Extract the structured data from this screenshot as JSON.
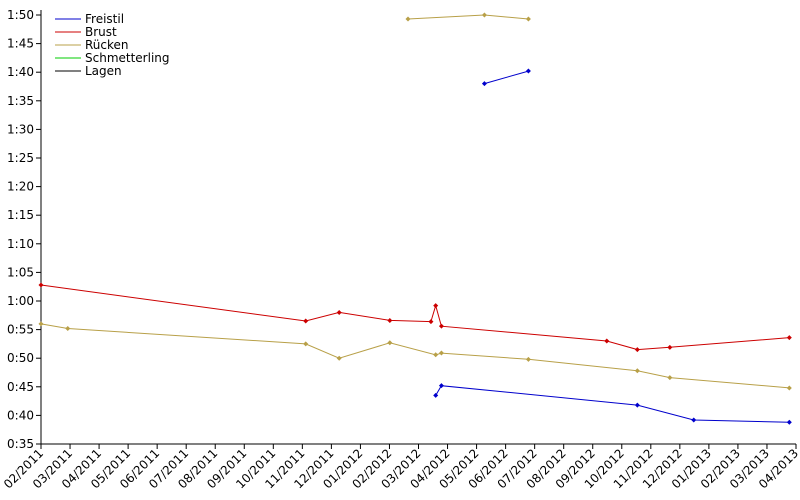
{
  "chart_data": {
    "type": "line",
    "title": "",
    "xlabel": "",
    "ylabel": "",
    "x_unit": "month",
    "xlim": [
      "2011-02-01",
      "2013-04-01"
    ],
    "ylim": [
      "0:35",
      "1:50"
    ],
    "x_tick_labels": [
      "02/2011",
      "03/2011",
      "04/2011",
      "05/2011",
      "06/2011",
      "07/2011",
      "08/2011",
      "09/2011",
      "10/2011",
      "11/2011",
      "12/2011",
      "01/2012",
      "02/2012",
      "03/2012",
      "04/2012",
      "05/2012",
      "06/2012",
      "07/2012",
      "08/2012",
      "09/2012",
      "10/2012",
      "11/2012",
      "12/2012",
      "01/2013",
      "02/2013",
      "03/2013",
      "04/2013"
    ],
    "y_tick_labels": [
      "0:35",
      "0:40",
      "0:45",
      "0:50",
      "0:55",
      "1:00",
      "1:05",
      "1:10",
      "1:15",
      "1:20",
      "1:25",
      "1:30",
      "1:35",
      "1:40",
      "1:45",
      "1:50"
    ],
    "grid": false,
    "legend_position": "top-left",
    "series": [
      {
        "name": "Freistil",
        "color": "#0000cc",
        "segments": [
          [
            [
              "2012-03-20",
              "0:43.5"
            ],
            [
              "2012-03-26",
              "0:45.2"
            ],
            [
              "2012-10-17",
              "0:41.8"
            ],
            [
              "2012-12-15",
              "0:39.2"
            ],
            [
              "2013-03-25",
              "0:38.8"
            ]
          ],
          [
            [
              "2012-05-10",
              "1:38"
            ],
            [
              "2012-06-25",
              "1:40.2"
            ]
          ]
        ]
      },
      {
        "name": "Brust",
        "color": "#cc0000",
        "segments": [
          [
            [
              "2011-02-01",
              "1:02.8"
            ],
            [
              "2011-11-05",
              "0:56.5"
            ],
            [
              "2011-12-10",
              "0:58"
            ],
            [
              "2012-02-01",
              "0:56.6"
            ],
            [
              "2012-03-15",
              "0:56.4"
            ],
            [
              "2012-03-20",
              "0:59.2"
            ],
            [
              "2012-03-26",
              "0:55.6"
            ],
            [
              "2012-09-15",
              "0:53"
            ],
            [
              "2012-10-17",
              "0:51.5"
            ],
            [
              "2012-11-20",
              "0:51.9"
            ],
            [
              "2013-03-25",
              "0:53.6"
            ]
          ]
        ]
      },
      {
        "name": "Rücken",
        "color": "#b8a048",
        "segments": [
          [
            [
              "2011-02-01",
              "0:56"
            ],
            [
              "2011-03-01",
              "0:55.2"
            ],
            [
              "2011-11-05",
              "0:52.5"
            ],
            [
              "2011-12-10",
              "0:50"
            ],
            [
              "2012-02-01",
              "0:52.7"
            ],
            [
              "2012-03-20",
              "0:50.6"
            ],
            [
              "2012-03-26",
              "0:50.9"
            ],
            [
              "2012-06-25",
              "0:49.8"
            ],
            [
              "2012-10-17",
              "0:47.8"
            ],
            [
              "2012-11-20",
              "0:46.6"
            ],
            [
              "2013-03-25",
              "0:44.8"
            ]
          ],
          [
            [
              "2012-02-20",
              "1:49.3"
            ],
            [
              "2012-05-10",
              "1:50"
            ],
            [
              "2012-06-25",
              "1:49.3"
            ]
          ]
        ]
      },
      {
        "name": "Schmetterling",
        "color": "#00cc00",
        "segments": []
      },
      {
        "name": "Lagen",
        "color": "#000000",
        "segments": []
      }
    ]
  }
}
